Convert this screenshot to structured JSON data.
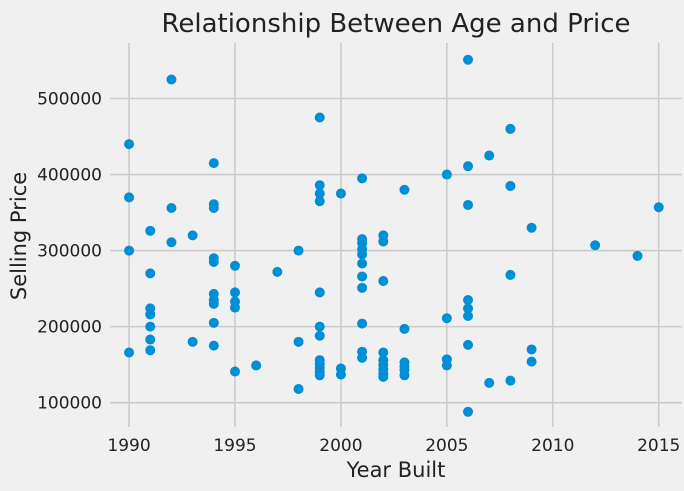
{
  "chart_data": {
    "type": "scatter",
    "title": "Relationship Between Age and Price",
    "xlabel": "Year Built",
    "ylabel": "Selling Price",
    "xlim": [
      1989.1,
      2016.1
    ],
    "ylim": [
      68000,
      573000
    ],
    "xticks": [
      1990,
      1995,
      2000,
      2005,
      2010,
      2015
    ],
    "yticks": [
      100000,
      200000,
      300000,
      400000,
      500000
    ],
    "grid": true,
    "point_color": "#008fd5",
    "background": "#f0f0f0",
    "points": [
      {
        "x": 1990,
        "y": 440000
      },
      {
        "x": 1990,
        "y": 370000
      },
      {
        "x": 1990,
        "y": 300000
      },
      {
        "x": 1990,
        "y": 166000
      },
      {
        "x": 1991,
        "y": 326000
      },
      {
        "x": 1991,
        "y": 270000
      },
      {
        "x": 1991,
        "y": 224000
      },
      {
        "x": 1991,
        "y": 216000
      },
      {
        "x": 1991,
        "y": 200000
      },
      {
        "x": 1991,
        "y": 183000
      },
      {
        "x": 1991,
        "y": 169000
      },
      {
        "x": 1992,
        "y": 525000
      },
      {
        "x": 1992,
        "y": 356000
      },
      {
        "x": 1992,
        "y": 311000
      },
      {
        "x": 1993,
        "y": 320000
      },
      {
        "x": 1993,
        "y": 180000
      },
      {
        "x": 1994,
        "y": 415000
      },
      {
        "x": 1994,
        "y": 361000
      },
      {
        "x": 1994,
        "y": 356000
      },
      {
        "x": 1994,
        "y": 290000
      },
      {
        "x": 1994,
        "y": 285000
      },
      {
        "x": 1994,
        "y": 243000
      },
      {
        "x": 1994,
        "y": 235000
      },
      {
        "x": 1994,
        "y": 230000
      },
      {
        "x": 1994,
        "y": 205000
      },
      {
        "x": 1994,
        "y": 175000
      },
      {
        "x": 1995,
        "y": 280000
      },
      {
        "x": 1995,
        "y": 245000
      },
      {
        "x": 1995,
        "y": 233000
      },
      {
        "x": 1995,
        "y": 225000
      },
      {
        "x": 1995,
        "y": 141000
      },
      {
        "x": 1996,
        "y": 149000
      },
      {
        "x": 1997,
        "y": 272000
      },
      {
        "x": 1998,
        "y": 300000
      },
      {
        "x": 1998,
        "y": 180000
      },
      {
        "x": 1998,
        "y": 118000
      },
      {
        "x": 1999,
        "y": 475000
      },
      {
        "x": 1999,
        "y": 386000
      },
      {
        "x": 1999,
        "y": 375000
      },
      {
        "x": 1999,
        "y": 365000
      },
      {
        "x": 1999,
        "y": 245000
      },
      {
        "x": 1999,
        "y": 200000
      },
      {
        "x": 1999,
        "y": 188000
      },
      {
        "x": 1999,
        "y": 156000
      },
      {
        "x": 1999,
        "y": 151000
      },
      {
        "x": 1999,
        "y": 146000
      },
      {
        "x": 1999,
        "y": 141000
      },
      {
        "x": 1999,
        "y": 136000
      },
      {
        "x": 2000,
        "y": 375000
      },
      {
        "x": 2000,
        "y": 145000
      },
      {
        "x": 2000,
        "y": 137000
      },
      {
        "x": 2001,
        "y": 395000
      },
      {
        "x": 2001,
        "y": 315000
      },
      {
        "x": 2001,
        "y": 310000
      },
      {
        "x": 2001,
        "y": 302000
      },
      {
        "x": 2001,
        "y": 295000
      },
      {
        "x": 2001,
        "y": 283000
      },
      {
        "x": 2001,
        "y": 266000
      },
      {
        "x": 2001,
        "y": 251000
      },
      {
        "x": 2001,
        "y": 204000
      },
      {
        "x": 2001,
        "y": 167000
      },
      {
        "x": 2001,
        "y": 159000
      },
      {
        "x": 2002,
        "y": 320000
      },
      {
        "x": 2002,
        "y": 312000
      },
      {
        "x": 2002,
        "y": 260000
      },
      {
        "x": 2002,
        "y": 166000
      },
      {
        "x": 2002,
        "y": 156000
      },
      {
        "x": 2002,
        "y": 150000
      },
      {
        "x": 2002,
        "y": 144000
      },
      {
        "x": 2002,
        "y": 138000
      },
      {
        "x": 2002,
        "y": 134000
      },
      {
        "x": 2003,
        "y": 380000
      },
      {
        "x": 2003,
        "y": 197000
      },
      {
        "x": 2003,
        "y": 153000
      },
      {
        "x": 2003,
        "y": 148000
      },
      {
        "x": 2003,
        "y": 143000
      },
      {
        "x": 2003,
        "y": 136000
      },
      {
        "x": 2005,
        "y": 400000
      },
      {
        "x": 2005,
        "y": 211000
      },
      {
        "x": 2005,
        "y": 157000
      },
      {
        "x": 2005,
        "y": 149000
      },
      {
        "x": 2006,
        "y": 551000
      },
      {
        "x": 2006,
        "y": 411000
      },
      {
        "x": 2006,
        "y": 360000
      },
      {
        "x": 2006,
        "y": 235000
      },
      {
        "x": 2006,
        "y": 224000
      },
      {
        "x": 2006,
        "y": 214000
      },
      {
        "x": 2006,
        "y": 176000
      },
      {
        "x": 2006,
        "y": 88000
      },
      {
        "x": 2007,
        "y": 425000
      },
      {
        "x": 2007,
        "y": 126000
      },
      {
        "x": 2008,
        "y": 460000
      },
      {
        "x": 2008,
        "y": 385000
      },
      {
        "x": 2008,
        "y": 268000
      },
      {
        "x": 2008,
        "y": 129000
      },
      {
        "x": 2009,
        "y": 330000
      },
      {
        "x": 2009,
        "y": 170000
      },
      {
        "x": 2009,
        "y": 154000
      },
      {
        "x": 2012,
        "y": 307000
      },
      {
        "x": 2014,
        "y": 293000
      },
      {
        "x": 2015,
        "y": 357000
      }
    ]
  }
}
